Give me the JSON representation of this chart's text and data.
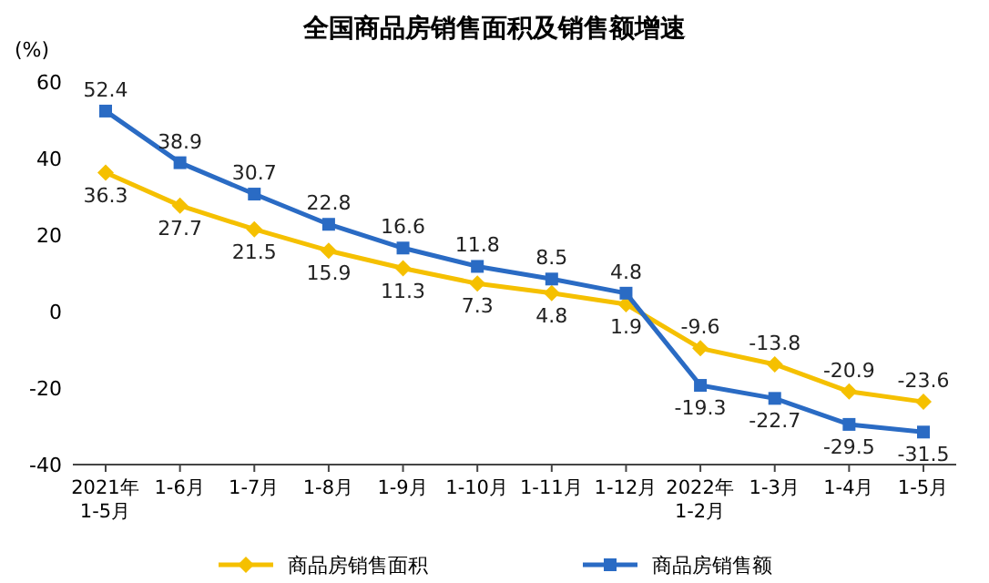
{
  "chart_data": {
    "type": "line",
    "title": "全国商品房销售面积及销售额增速",
    "ylabel": "(%)",
    "categories": [
      "2021年\n1-5月",
      "1-6月",
      "1-7月",
      "1-8月",
      "1-9月",
      "1-10月",
      "1-11月",
      "1-12月",
      "2022年\n1-2月",
      "1-3月",
      "1-4月",
      "1-5月"
    ],
    "series": [
      {
        "name": "商品房销售面积",
        "color": "#f5c000",
        "marker": "diamond",
        "values": [
          36.3,
          27.7,
          21.5,
          15.9,
          11.3,
          7.3,
          4.8,
          1.9,
          -9.6,
          -13.8,
          -20.9,
          -23.6
        ]
      },
      {
        "name": "商品房销售额",
        "color": "#2a6bc4",
        "marker": "square",
        "values": [
          52.4,
          38.9,
          30.7,
          22.8,
          16.6,
          11.8,
          8.5,
          4.8,
          -19.3,
          -22.7,
          -29.5,
          -31.5
        ]
      }
    ],
    "ylim": [
      -40,
      60
    ],
    "yticks": [
      -40,
      -20,
      0,
      20,
      40,
      60
    ],
    "grid": false,
    "legend": "bottom",
    "data_labels": true,
    "line_style": "solid"
  }
}
